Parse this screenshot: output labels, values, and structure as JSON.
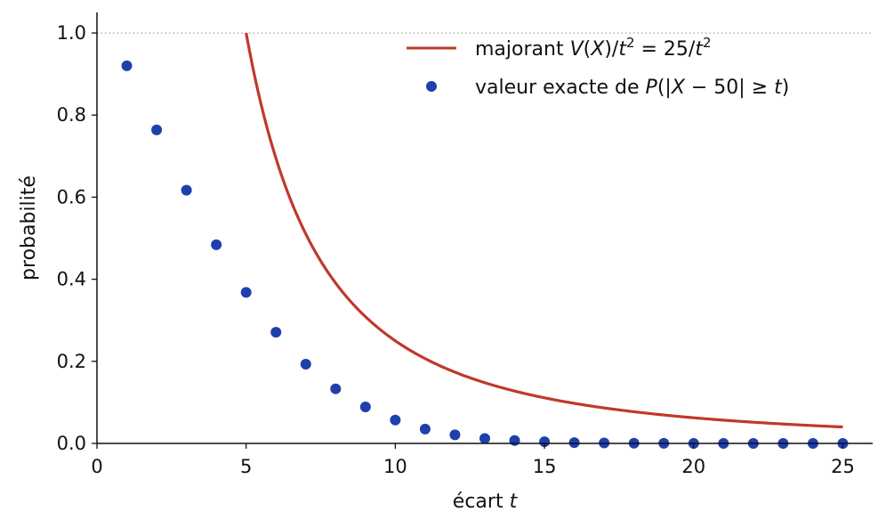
{
  "chart_data": {
    "type": "line",
    "xlabel": "écart",
    "xlabel_var": "t",
    "ylabel": "probabilité",
    "xlim": [
      0,
      26
    ],
    "ylim": [
      0,
      1.05
    ],
    "xticks": [
      0,
      5,
      10,
      15,
      20,
      25
    ],
    "yticks": [
      0.0,
      0.2,
      0.4,
      0.6,
      0.8,
      1.0
    ],
    "xtick_labels": [
      "0",
      "5",
      "10",
      "15",
      "20",
      "25"
    ],
    "ytick_labels": [
      "0.0",
      "0.2",
      "0.4",
      "0.6",
      "0.8",
      "1.0"
    ],
    "reference_line": {
      "y": 1.0,
      "style": "dotted",
      "color": "#999999"
    },
    "legend_position": "top-right",
    "series": [
      {
        "name": "majorant V(X)/t² = 25/t²",
        "kind": "line",
        "color": "#c0392b",
        "formula": "25/t^2",
        "x_range": [
          5,
          25
        ]
      },
      {
        "name": "valeur exacte de P(|X − 50| ≥ t)",
        "kind": "scatter",
        "color": "#1f3fad",
        "x": [
          1,
          2,
          3,
          4,
          5,
          6,
          7,
          8,
          9,
          10,
          11,
          12,
          13,
          14,
          15,
          16,
          17,
          18,
          19,
          20,
          21,
          22,
          23,
          24,
          25
        ],
        "y": [
          0.92,
          0.764,
          0.617,
          0.484,
          0.368,
          0.271,
          0.193,
          0.133,
          0.089,
          0.057,
          0.035,
          0.021,
          0.012,
          0.007,
          0.004,
          0.002,
          0.001,
          0.0005,
          0.0002,
          0.0001,
          0.0,
          0.0,
          0.0,
          0.0,
          0.0
        ]
      }
    ]
  },
  "legend": {
    "line": {
      "prefix": "majorant ",
      "v": "V",
      "paren_open": "(",
      "x": "X",
      "paren_close": ")/",
      "t": "t",
      "sup": "2",
      "eq": " = 25/",
      "t2": "t",
      "sup2": "2"
    },
    "dots": {
      "prefix": "valeur exacte de ",
      "p": "P",
      "open": "(|",
      "x": "X",
      "minus": " − 50| ≥ ",
      "t": "t",
      "close": ")"
    }
  }
}
